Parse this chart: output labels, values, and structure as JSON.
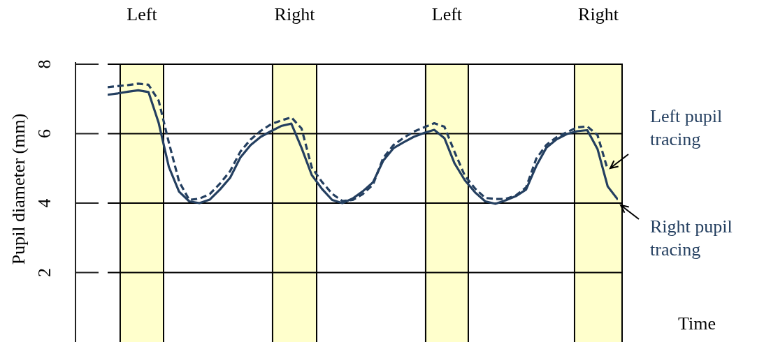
{
  "chart_data": {
    "type": "line",
    "ylabel": "Pupil diameter (mm)",
    "xlabel": "Time",
    "ylim": [
      0,
      8
    ],
    "yticks": [
      2,
      4,
      6,
      8
    ],
    "tick_labels": "y",
    "grid": true,
    "annotations": [
      "Left",
      "Right",
      "Left",
      "Right"
    ],
    "legend": false,
    "marker": "none",
    "categories": [
      null,
      null,
      null,
      null,
      null,
      null,
      null,
      null,
      null,
      null,
      null,
      null,
      null,
      null,
      null,
      null,
      null,
      null,
      null,
      null,
      null,
      null,
      null,
      null,
      null,
      null,
      null,
      null,
      null,
      null,
      null,
      null,
      null,
      null,
      null,
      null,
      null,
      null,
      null,
      null,
      null,
      null,
      null,
      null,
      null,
      null,
      null,
      null,
      null,
      null,
      null
    ],
    "series": [
      {
        "name": "Right pupil tracing",
        "color": "#243f60",
        "line_style": "solid",
        "values": [
          7.12,
          7.16,
          7.21,
          7.25,
          7.2,
          6.31,
          5.04,
          4.33,
          4.05,
          4.0,
          4.1,
          4.39,
          4.73,
          5.31,
          5.67,
          5.91,
          6.07,
          6.22,
          6.29,
          5.59,
          4.81,
          4.41,
          4.09,
          4.0,
          4.13,
          4.34,
          4.6,
          5.22,
          5.58,
          5.75,
          5.91,
          6.02,
          6.11,
          5.87,
          5.14,
          4.66,
          4.31,
          4.05,
          3.98,
          4.08,
          4.2,
          4.39,
          5.07,
          5.6,
          5.84,
          5.99,
          6.07,
          6.1,
          5.56,
          4.48,
          4.1
        ]
      },
      {
        "name": "Left pupil tracing",
        "color": "#243f60",
        "line_style": "dashed",
        "values": [
          7.34,
          7.37,
          7.4,
          7.44,
          7.41,
          6.95,
          5.74,
          4.62,
          4.09,
          4.13,
          4.26,
          4.56,
          4.92,
          5.48,
          5.83,
          6.08,
          6.27,
          6.38,
          6.47,
          6.15,
          5.03,
          4.61,
          4.27,
          4.06,
          4.09,
          4.26,
          4.53,
          5.3,
          5.67,
          5.88,
          6.06,
          6.18,
          6.3,
          6.2,
          5.47,
          4.79,
          4.42,
          4.15,
          4.12,
          4.12,
          4.22,
          4.45,
          5.28,
          5.68,
          5.9,
          6.04,
          6.18,
          6.21,
          5.96,
          4.96,
          null
        ]
      }
    ]
  }
}
